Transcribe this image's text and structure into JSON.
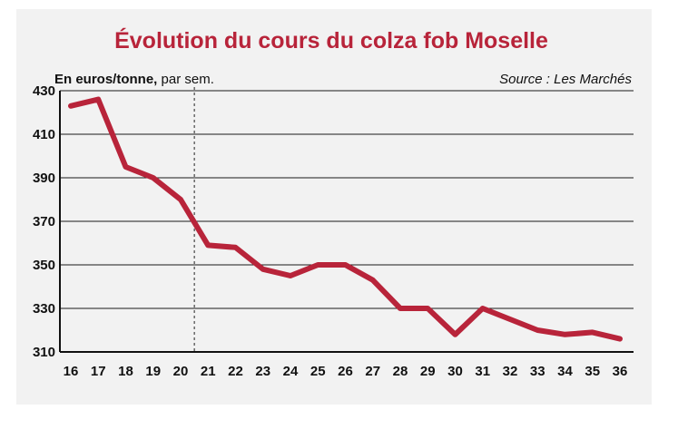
{
  "chart_data": {
    "type": "line",
    "title": "Évolution du cours du colza fob Moselle",
    "unit_label_bold": "En euros/tonne,",
    "unit_label_rest": " par sem.",
    "source": "Source : Les Marchés",
    "xlabel": "",
    "ylabel": "",
    "ylim": [
      310,
      430
    ],
    "yticks": [
      310,
      330,
      350,
      370,
      390,
      410,
      430
    ],
    "grid": true,
    "marker_week": 20.5,
    "x": [
      16,
      17,
      18,
      19,
      20,
      21,
      22,
      23,
      24,
      25,
      26,
      27,
      28,
      29,
      30,
      31,
      32,
      33,
      34,
      35,
      36
    ],
    "series": [
      {
        "values": [
          423,
          426,
          395,
          390,
          380,
          359,
          358,
          348,
          345,
          350,
          350,
          343,
          330,
          330,
          318,
          330,
          325,
          320,
          318,
          319,
          316
        ]
      }
    ],
    "colors": {
      "series": "#b8243a",
      "title": "#b8243a"
    }
  }
}
